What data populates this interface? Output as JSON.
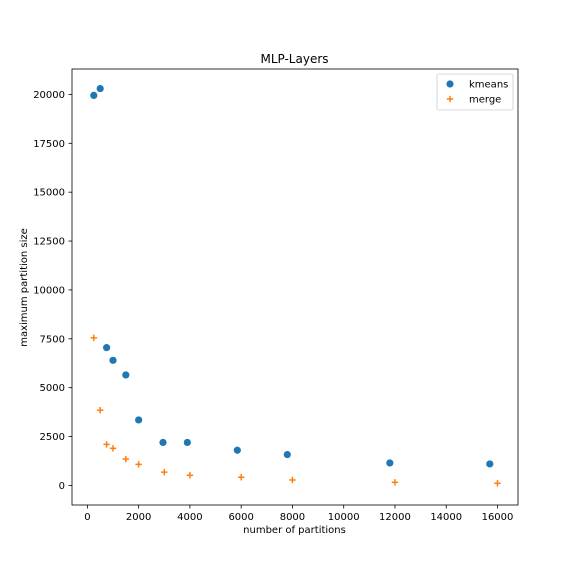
{
  "chart_data": {
    "type": "scatter",
    "title": "MLP-Layers",
    "xlabel": "number of partitions",
    "ylabel": "maximum partition size",
    "xlim": [
      -600,
      16800
    ],
    "ylim": [
      -1000,
      21300
    ],
    "xticks": [
      0,
      2000,
      4000,
      6000,
      8000,
      10000,
      12000,
      14000,
      16000
    ],
    "yticks": [
      0,
      2500,
      5000,
      7500,
      10000,
      12500,
      15000,
      17500,
      20000
    ],
    "legend_position": "top-right",
    "grid": false,
    "series": [
      {
        "name": "kmeans",
        "marker": "circle",
        "color": "#1f77b4",
        "points": [
          [
            250,
            19950
          ],
          [
            500,
            20300
          ],
          [
            750,
            7050
          ],
          [
            1000,
            6400
          ],
          [
            1500,
            5650
          ],
          [
            2000,
            3350
          ],
          [
            2950,
            2200
          ],
          [
            3900,
            2200
          ],
          [
            5850,
            1800
          ],
          [
            7800,
            1580
          ],
          [
            11800,
            1150
          ],
          [
            15700,
            1100
          ]
        ]
      },
      {
        "name": "merge",
        "marker": "plus",
        "color": "#ff7f0e",
        "points": [
          [
            250,
            7550
          ],
          [
            500,
            3850
          ],
          [
            750,
            2100
          ],
          [
            1000,
            1900
          ],
          [
            1500,
            1350
          ],
          [
            2000,
            1080
          ],
          [
            3000,
            680
          ],
          [
            4000,
            520
          ],
          [
            6000,
            420
          ],
          [
            8000,
            280
          ],
          [
            12000,
            160
          ],
          [
            16000,
            110
          ]
        ]
      }
    ]
  }
}
